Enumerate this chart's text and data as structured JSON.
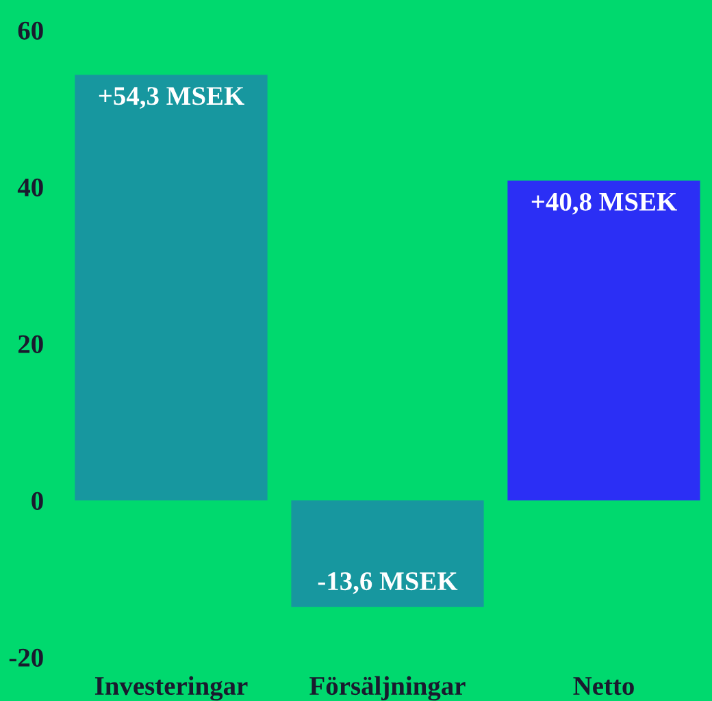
{
  "chart_data": {
    "type": "bar",
    "categories": [
      "Investeringar",
      "Försäljningar",
      "Netto"
    ],
    "values": [
      54.3,
      -13.6,
      40.8
    ],
    "colors": [
      "#17979f",
      "#17979f",
      "#2b2ff5"
    ],
    "value_labels": [
      "+54,3 MSEK",
      "-13,6 MSEK",
      "+40,8 MSEK"
    ],
    "ylim": [
      -20,
      60
    ],
    "yticks": [
      -20,
      0,
      20,
      40,
      60
    ],
    "grid": false,
    "legend": false
  }
}
